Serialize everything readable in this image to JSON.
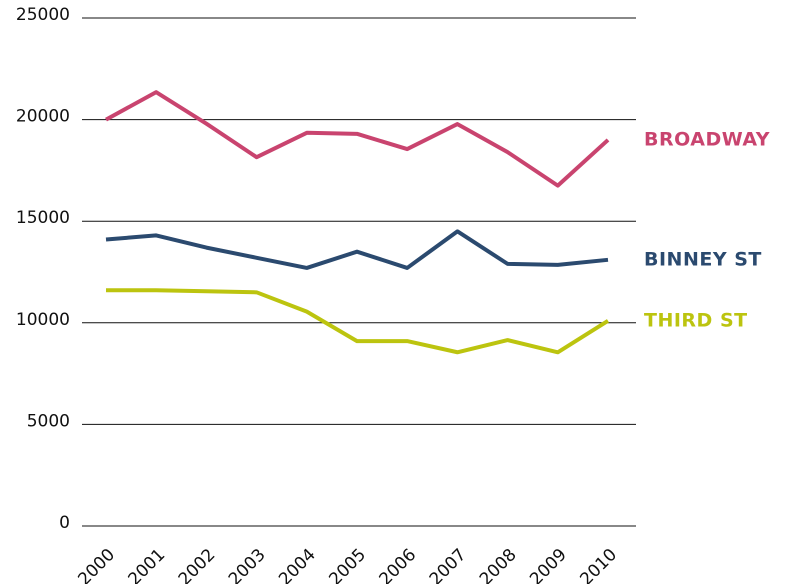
{
  "chart_data": {
    "type": "line",
    "categories": [
      "2000",
      "2001",
      "2002",
      "2003",
      "2004",
      "2005",
      "2006",
      "2007",
      "2008",
      "2009",
      "2010"
    ],
    "series": [
      {
        "name": "BROADWAY",
        "color": "#c9446f",
        "values": [
          20000,
          21350,
          19800,
          18150,
          19350,
          19300,
          18550,
          19780,
          18400,
          16750,
          19000
        ]
      },
      {
        "name": "BINNEY ST",
        "color": "#2b4a6f",
        "values": [
          14100,
          14300,
          13700,
          13200,
          12700,
          13500,
          12700,
          14500,
          12900,
          12850,
          13100
        ]
      },
      {
        "name": "THIRD ST",
        "color": "#bcc40f",
        "values": [
          11600,
          11600,
          11550,
          11500,
          10550,
          9100,
          9100,
          8550,
          9150,
          8550,
          10100
        ]
      }
    ],
    "ylim": [
      0,
      25000
    ],
    "yticks": [
      0,
      5000,
      10000,
      15000,
      20000,
      25000
    ],
    "grid": true
  }
}
